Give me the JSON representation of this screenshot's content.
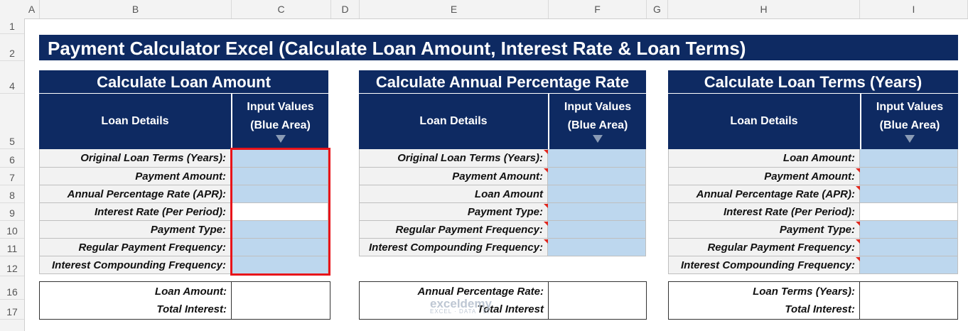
{
  "columns": [
    "A",
    "B",
    "C",
    "D",
    "E",
    "F",
    "G",
    "H",
    "I"
  ],
  "rows": [
    "1",
    "2",
    "4",
    "5",
    "6",
    "7",
    "8",
    "9",
    "10",
    "11",
    "12",
    "16",
    "17"
  ],
  "banner": "Payment Calculator Excel (Calculate Loan Amount, Interest Rate & Loan Terms)",
  "sections": [
    {
      "title": "Calculate Loan Amount",
      "col_left": "Loan Details",
      "col_right_1": "Input Values",
      "col_right_2": "(Blue Area)",
      "rows": [
        {
          "label": "Original Loan Terms (Years):",
          "fill": "blue",
          "comment": false
        },
        {
          "label": "Payment Amount:",
          "fill": "blue",
          "comment": false
        },
        {
          "label": "Annual Percentage Rate (APR):",
          "fill": "blue",
          "comment": false
        },
        {
          "label": "Interest Rate (Per Period):",
          "fill": "white",
          "comment": false
        },
        {
          "label": "Payment Type:",
          "fill": "blue",
          "comment": false
        },
        {
          "label": "Regular Payment Frequency:",
          "fill": "blue",
          "comment": false
        },
        {
          "label": "Interest Compounding Frequency:",
          "fill": "blue",
          "comment": false
        }
      ],
      "results": [
        "Loan Amount:",
        "Total Interest:"
      ]
    },
    {
      "title": "Calculate Annual Percentage Rate",
      "col_left": "Loan Details",
      "col_right_1": "Input Values",
      "col_right_2": "(Blue Area)",
      "rows": [
        {
          "label": "Original Loan Terms (Years):",
          "fill": "blue",
          "comment": true
        },
        {
          "label": "Payment Amount:",
          "fill": "blue",
          "comment": true
        },
        {
          "label": "Loan Amount",
          "fill": "blue",
          "comment": false
        },
        {
          "label": "Payment Type:",
          "fill": "blue",
          "comment": true
        },
        {
          "label": "Regular Payment Frequency:",
          "fill": "blue",
          "comment": true
        },
        {
          "label": "Interest Compounding Frequency:",
          "fill": "blue",
          "comment": true
        }
      ],
      "results": [
        "Annual Percentage Rate:",
        "Total Interest"
      ]
    },
    {
      "title": "Calculate Loan Terms (Years)",
      "col_left": "Loan Details",
      "col_right_1": "Input Values",
      "col_right_2": "(Blue Area)",
      "rows": [
        {
          "label": "Loan Amount:",
          "fill": "blue",
          "comment": false
        },
        {
          "label": "Payment Amount:",
          "fill": "blue",
          "comment": true
        },
        {
          "label": "Annual Percentage Rate (APR):",
          "fill": "blue",
          "comment": true
        },
        {
          "label": "Interest Rate (Per Period):",
          "fill": "white",
          "comment": false
        },
        {
          "label": "Payment Type:",
          "fill": "blue",
          "comment": true
        },
        {
          "label": "Regular Payment Frequency:",
          "fill": "blue",
          "comment": true
        },
        {
          "label": "Interest Compounding Frequency:",
          "fill": "blue",
          "comment": true
        }
      ],
      "results": [
        "Loan Terms (Years):",
        "Total Interest:"
      ]
    }
  ],
  "watermark": {
    "main": "exceldemy",
    "sub": "EXCEL · DATA · BI"
  }
}
